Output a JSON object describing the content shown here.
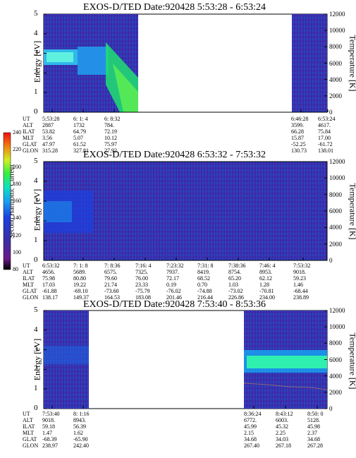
{
  "figure": {
    "spectrograms": [
      {
        "title": "EXOS-D/TED   Date:920428  5:53:28 - 6:53:24",
        "ylabel": "Energy [eV]",
        "y2label": "Temperature [K]",
        "ylim": [
          0,
          5
        ],
        "y2lim": [
          0,
          12000
        ],
        "yticks": [
          "0",
          "1",
          "2",
          "3",
          "4",
          "5"
        ],
        "y2ticks": [
          "0",
          "2000",
          "4000",
          "6000",
          "8000",
          "10000",
          "12000"
        ],
        "data_segments": [
          "5:53:28 - 6:10:00",
          "6:46:28 - 6:53:24"
        ],
        "row_labels": [
          "UT",
          "ALT",
          "ILAT",
          "MLT",
          "GLAT",
          "GLON"
        ],
        "columns": [
          {
            "values": [
              "5:53:28",
              "2887",
              "53.82",
              "3.56",
              "47.97",
              "315.28"
            ]
          },
          {
            "values": [
              "6: 1: 4",
              "1732",
              "64.79",
              "5.07",
              "61.52",
              "327.81"
            ]
          },
          {
            "values": [
              "6: 8:32",
              "784.",
              "72.19",
              "10.12",
              "75.97",
              "27.92"
            ]
          },
          {
            "values": [
              "6:46:28",
              "3599.",
              "66.28",
              "15.87",
              "-52.25",
              "130.73"
            ]
          },
          {
            "values": [
              "6:53:24",
              "4617.",
              "75.84",
              "17.00",
              "-61.72",
              "138.01"
            ]
          }
        ]
      },
      {
        "title": "EXOS-D/TED   Date:920428  6:53:32 - 7:53:32",
        "ylabel": "Energy [eV]",
        "y2label": "Temperature [K]",
        "ylim": [
          0,
          5
        ],
        "y2lim": [
          0,
          12000
        ],
        "yticks": [
          "0",
          "1",
          "2",
          "3",
          "4",
          "5"
        ],
        "y2ticks": [
          "0",
          "2000",
          "4000",
          "6000",
          "8000",
          "10000",
          "12000"
        ],
        "data_segments": [
          "6:53:32 - 7:53:32"
        ],
        "row_labels": [
          "UT",
          "ALT",
          "ILAT",
          "MLT",
          "GLAT",
          "GLON"
        ],
        "columns": [
          {
            "values": [
              "6:53:32",
              "4656.",
              "75.98",
              "17.03",
              "-61.88",
              "138.17"
            ]
          },
          {
            "values": [
              "7: 1: 8",
              "5689.",
              "80.80",
              "19.22",
              "-69.10",
              "149.37"
            ]
          },
          {
            "values": [
              "7: 8:36",
              "6575.",
              "79.60",
              "21.74",
              "-73.60",
              "164.53"
            ]
          },
          {
            "values": [
              "7:16: 4",
              "7325.",
              "76.00",
              "23.33",
              "-75.79",
              "183.08"
            ]
          },
          {
            "values": [
              "7:23:32",
              "7937.",
              "72.17",
              "0.19",
              "-76.02",
              "201.46"
            ]
          },
          {
            "values": [
              "7:31: 8",
              "8419.",
              "68.52",
              "0.70",
              "-74.88",
              "216.44"
            ]
          },
          {
            "values": [
              "7:38:36",
              "8754.",
              "65.20",
              "1.03",
              "-73.02",
              "226.86"
            ]
          },
          {
            "values": [
              "7:46: 4",
              "8953.",
              "62.12",
              "1.28",
              "-70.81",
              "234.00"
            ]
          },
          {
            "values": [
              "7:53:32",
              "9018.",
              "59.23",
              "1.46",
              "-68.44",
              "238.89"
            ]
          }
        ]
      },
      {
        "title": "EXOS-D/TED   Date:920428  7:53:40 - 8:53:36",
        "ylabel": "Energy [eV]",
        "y2label": "Temperature [K]",
        "ylim": [
          0,
          5
        ],
        "y2lim": [
          0,
          12000
        ],
        "yticks": [
          "0",
          "1",
          "2",
          "3",
          "4",
          "5"
        ],
        "y2ticks": [
          "0",
          "2000",
          "4000",
          "6000",
          "8000",
          "10000",
          "12000"
        ],
        "data_segments": [
          "7:53:40 - 8:01:16",
          "8:36:24 - 8:53:36"
        ],
        "row_labels": [
          "UT",
          "ALT",
          "ILAT",
          "MLT",
          "GLAT",
          "GLON"
        ],
        "columns": [
          {
            "values": [
              "7:53:40",
              "9018.",
              "59.18",
              "1.47",
              "-68.39",
              "238.97"
            ]
          },
          {
            "values": [
              "8: 1:16",
              "8943.",
              "56.39",
              "1.62",
              "-65.90",
              "242.40"
            ]
          },
          {
            "values": [
              "8:36:24",
              "6772.",
              "45.99",
              "2.15",
              "34.68",
              "267.40"
            ]
          },
          {
            "values": [
              "8:43:12",
              "6003.",
              "45.32",
              "2.25",
              "34.03",
              "267.18"
            ]
          },
          {
            "values": [
              "8:50: 0",
              "5128.",
              "45.98",
              "2.37",
              "34.68",
              "267.28"
            ]
          }
        ]
      }
    ],
    "colorbar": {
      "label": "Second Harmonic Current",
      "ticks": [
        "80",
        "100",
        "120",
        "140",
        "160",
        "180",
        "200",
        "220",
        "240"
      ],
      "range": [
        80,
        240
      ]
    }
  },
  "chart_data": [
    {
      "type": "heatmap",
      "title": "EXOS-D/TED   Date:920428  5:53:28 - 6:53:24",
      "x_time_range": [
        "5:53:28",
        "6:53:24"
      ],
      "ylabel": "Energy [eV]",
      "ylim": [
        0,
        5
      ],
      "y2label": "Temperature [K]",
      "y2lim": [
        0,
        12000
      ],
      "colorbar_label": "Second Harmonic Current",
      "color_range": [
        80,
        240
      ],
      "features": [
        {
          "time": "5:53:28 - 6:00:30",
          "energy_eV": [
            2.0,
            3.0
          ],
          "level": 160
        },
        {
          "time": "6:02:00 - 6:10:00",
          "energy_eV": [
            0.5,
            3.0
          ],
          "level": 170
        }
      ]
    },
    {
      "type": "heatmap",
      "title": "EXOS-D/TED   Date:920428  6:53:32 - 7:53:32",
      "x_time_range": [
        "6:53:32",
        "7:53:32"
      ],
      "ylabel": "Energy [eV]",
      "ylim": [
        0,
        5
      ],
      "y2label": "Temperature [K]",
      "y2lim": [
        0,
        12000
      ],
      "colorbar_label": "Second Harmonic Current",
      "color_range": [
        80,
        240
      ],
      "features": [
        {
          "time": "6:53:32 - 7:05:00",
          "energy_eV": [
            1.0,
            3.0
          ],
          "level": 135
        }
      ]
    },
    {
      "type": "heatmap",
      "title": "EXOS-D/TED   Date:920428  7:53:40 - 8:53:36",
      "x_time_range": [
        "7:53:40",
        "8:53:36"
      ],
      "ylabel": "Energy [eV]",
      "ylim": [
        0,
        5
      ],
      "y2label": "Temperature [K]",
      "y2lim": [
        0,
        12000
      ],
      "colorbar_label": "Second Harmonic Current",
      "color_range": [
        80,
        240
      ],
      "features": [
        {
          "time": "8:36:24 - 8:53:36",
          "energy_eV": [
            2.2,
            2.8
          ],
          "level": 175
        }
      ],
      "temperature_trace": {
        "time": [
          "8:36:24",
          "8:53:36"
        ],
        "K": [
          3300,
          2700
        ]
      }
    }
  ]
}
